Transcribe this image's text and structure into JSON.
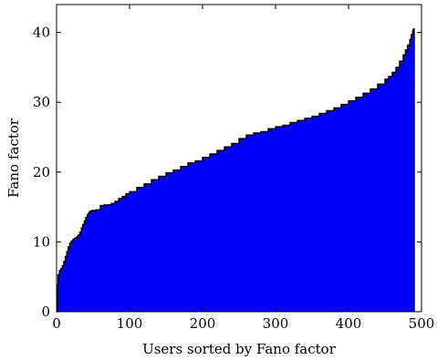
{
  "chart_data": {
    "type": "area",
    "xlabel": "Users sorted by Fano factor",
    "ylabel": "Fano factor",
    "xlim": [
      0,
      500
    ],
    "ylim": [
      0,
      44
    ],
    "x_ticks": [
      0,
      100,
      200,
      300,
      400,
      500
    ],
    "y_ticks": [
      0,
      10,
      20,
      30,
      40
    ],
    "grid": false,
    "legend": "none",
    "fill_color": "#0000ff",
    "edge_color": "#000000",
    "series": [
      {
        "x": [
          0,
          1,
          2,
          4,
          6,
          8,
          10,
          12,
          14,
          16,
          18,
          20,
          22,
          24,
          26,
          28,
          30,
          32,
          34,
          36,
          38,
          40,
          42,
          44,
          46,
          48,
          50,
          52,
          54,
          56,
          58,
          60,
          65,
          70,
          75,
          80,
          85,
          90,
          95,
          100,
          110,
          120,
          130,
          140,
          150,
          160,
          170,
          180,
          190,
          200,
          210,
          220,
          230,
          240,
          250,
          260,
          270,
          280,
          290,
          300,
          310,
          320,
          330,
          340,
          350,
          360,
          370,
          380,
          390,
          400,
          410,
          420,
          430,
          440,
          450,
          455,
          460,
          465,
          470,
          475,
          478,
          481,
          484,
          486,
          488,
          489,
          490
        ],
        "values": [
          0,
          3.8,
          5.3,
          5.9,
          6.2,
          6.6,
          7.2,
          7.9,
          8.6,
          9.3,
          9.8,
          10.1,
          10.3,
          10.5,
          10.6,
          10.8,
          11.0,
          11.4,
          12.0,
          12.5,
          13.0,
          13.5,
          13.9,
          14.2,
          14.4,
          14.5,
          14.5,
          14.5,
          14.6,
          14.6,
          14.6,
          15.2,
          15.3,
          15.3,
          15.5,
          15.8,
          16.2,
          16.5,
          16.9,
          17.2,
          17.8,
          18.3,
          18.9,
          19.4,
          19.9,
          20.3,
          20.8,
          21.3,
          21.6,
          22.1,
          22.6,
          23.1,
          23.6,
          24.1,
          24.8,
          25.3,
          25.6,
          25.8,
          26.2,
          26.5,
          26.7,
          27.1,
          27.4,
          27.7,
          28.0,
          28.4,
          28.8,
          29.2,
          29.7,
          30.2,
          30.7,
          31.3,
          31.9,
          32.6,
          33.3,
          33.7,
          34.3,
          35.0,
          35.9,
          36.8,
          37.5,
          38.2,
          39.0,
          39.7,
          40.3,
          40.5,
          40.5
        ]
      }
    ]
  }
}
